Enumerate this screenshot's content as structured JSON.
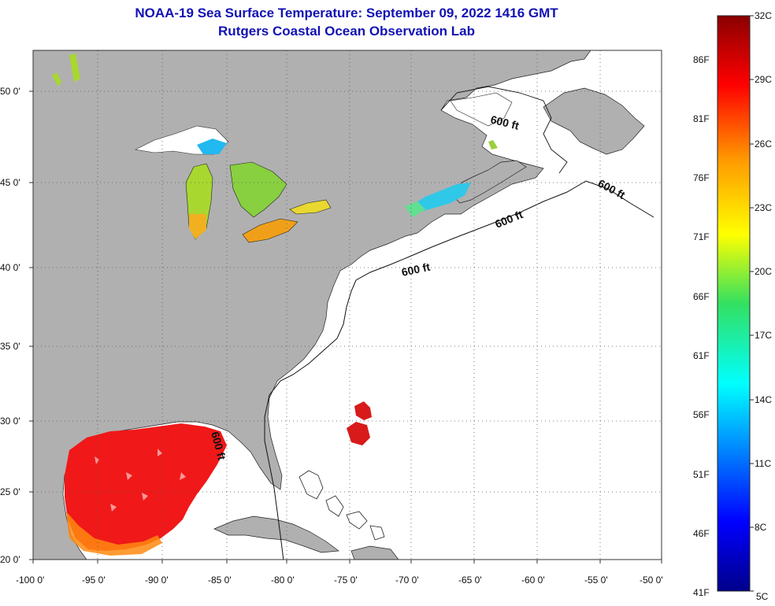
{
  "title": "NOAA-19 Sea Surface Temperature:  September 09, 2022 1416 GMT",
  "subtitle": "Rutgers Coastal Ocean Observation Lab",
  "map": {
    "lon_ticks": [
      "-100 0'",
      "-95 0'",
      "-90 0'",
      "-85 0'",
      "-80 0'",
      "-75 0'",
      "-70 0'",
      "-65 0'",
      "-60 0'",
      "-55 0'",
      "-50 0'"
    ],
    "lat_ticks": [
      "50 0'",
      "45 0'",
      "40 0'",
      "35 0'",
      "30 0'",
      "25 0'",
      "20 0'"
    ],
    "isobath_label": "600 ft",
    "land_color": "#b0b0b0",
    "water_color": "#ffffff"
  },
  "colorbar": {
    "celsius": [
      "32C",
      "29C",
      "26C",
      "23C",
      "20C",
      "17C",
      "14C",
      "11C",
      "8C",
      "5C"
    ],
    "fahrenheit": [
      "86F",
      "81F",
      "76F",
      "71F",
      "66F",
      "61F",
      "56F",
      "51F",
      "46F",
      "41F"
    ]
  }
}
